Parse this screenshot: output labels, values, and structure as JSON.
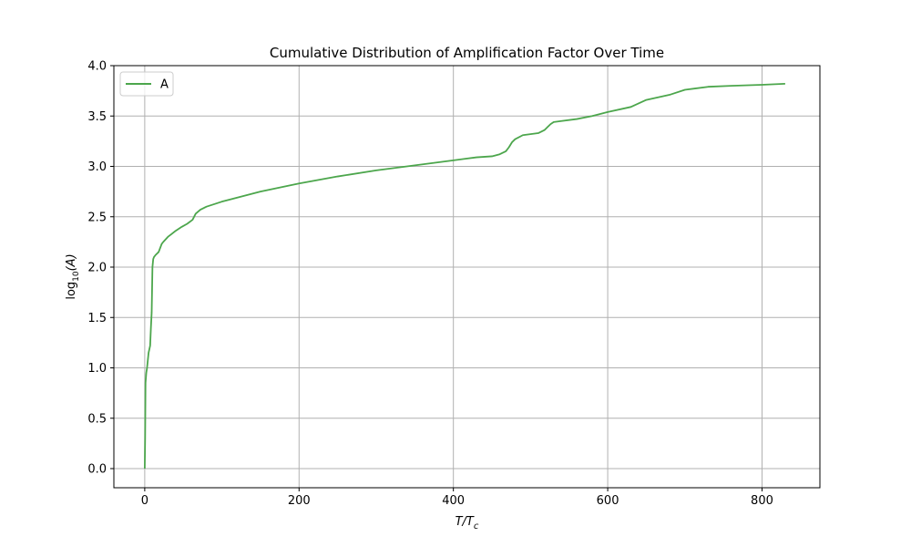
{
  "chart_data": {
    "type": "line",
    "title": "Cumulative Distribution of Amplification Factor Over Time",
    "xlabel": {
      "base": "T/T",
      "sub": "c"
    },
    "ylabel": {
      "prefix": "log",
      "sub": "10",
      "suffix": "(A)"
    },
    "xlim": [
      -40,
      875
    ],
    "ylim": [
      -0.19,
      4.0
    ],
    "xticks": [
      0,
      200,
      400,
      600,
      800
    ],
    "yticks": [
      0.0,
      0.5,
      1.0,
      1.5,
      2.0,
      2.5,
      3.0,
      3.5,
      4.0
    ],
    "xtick_labels": [
      "0",
      "200",
      "400",
      "600",
      "800"
    ],
    "ytick_labels": [
      "0.0",
      "0.5",
      "1.0",
      "1.5",
      "2.0",
      "2.5",
      "3.0",
      "3.5",
      "4.0"
    ],
    "grid": true,
    "legend_position": "top-left",
    "series": [
      {
        "name": "A",
        "color": "#4ca64c",
        "x": [
          0,
          0.5,
          1,
          2,
          3,
          5,
          7,
          8,
          9,
          10,
          11,
          12,
          14,
          18,
          22,
          24,
          30,
          35,
          40,
          48,
          55,
          62,
          66,
          72,
          80,
          100,
          150,
          200,
          250,
          300,
          350,
          400,
          430,
          450,
          460,
          468,
          472,
          476,
          480,
          490,
          500,
          510,
          518,
          522,
          526,
          530,
          540,
          560,
          580,
          600,
          630,
          650,
          680,
          700,
          730,
          760,
          800,
          830
        ],
        "y": [
          0.0,
          0.3,
          0.85,
          0.95,
          1.0,
          1.15,
          1.22,
          1.4,
          1.55,
          2.0,
          2.08,
          2.1,
          2.12,
          2.15,
          2.23,
          2.25,
          2.3,
          2.33,
          2.36,
          2.4,
          2.43,
          2.47,
          2.53,
          2.57,
          2.6,
          2.65,
          2.75,
          2.83,
          2.9,
          2.96,
          3.01,
          3.06,
          3.09,
          3.1,
          3.12,
          3.15,
          3.19,
          3.24,
          3.27,
          3.31,
          3.32,
          3.33,
          3.36,
          3.39,
          3.42,
          3.44,
          3.45,
          3.47,
          3.5,
          3.54,
          3.59,
          3.66,
          3.71,
          3.76,
          3.79,
          3.8,
          3.81,
          3.82
        ]
      }
    ]
  }
}
